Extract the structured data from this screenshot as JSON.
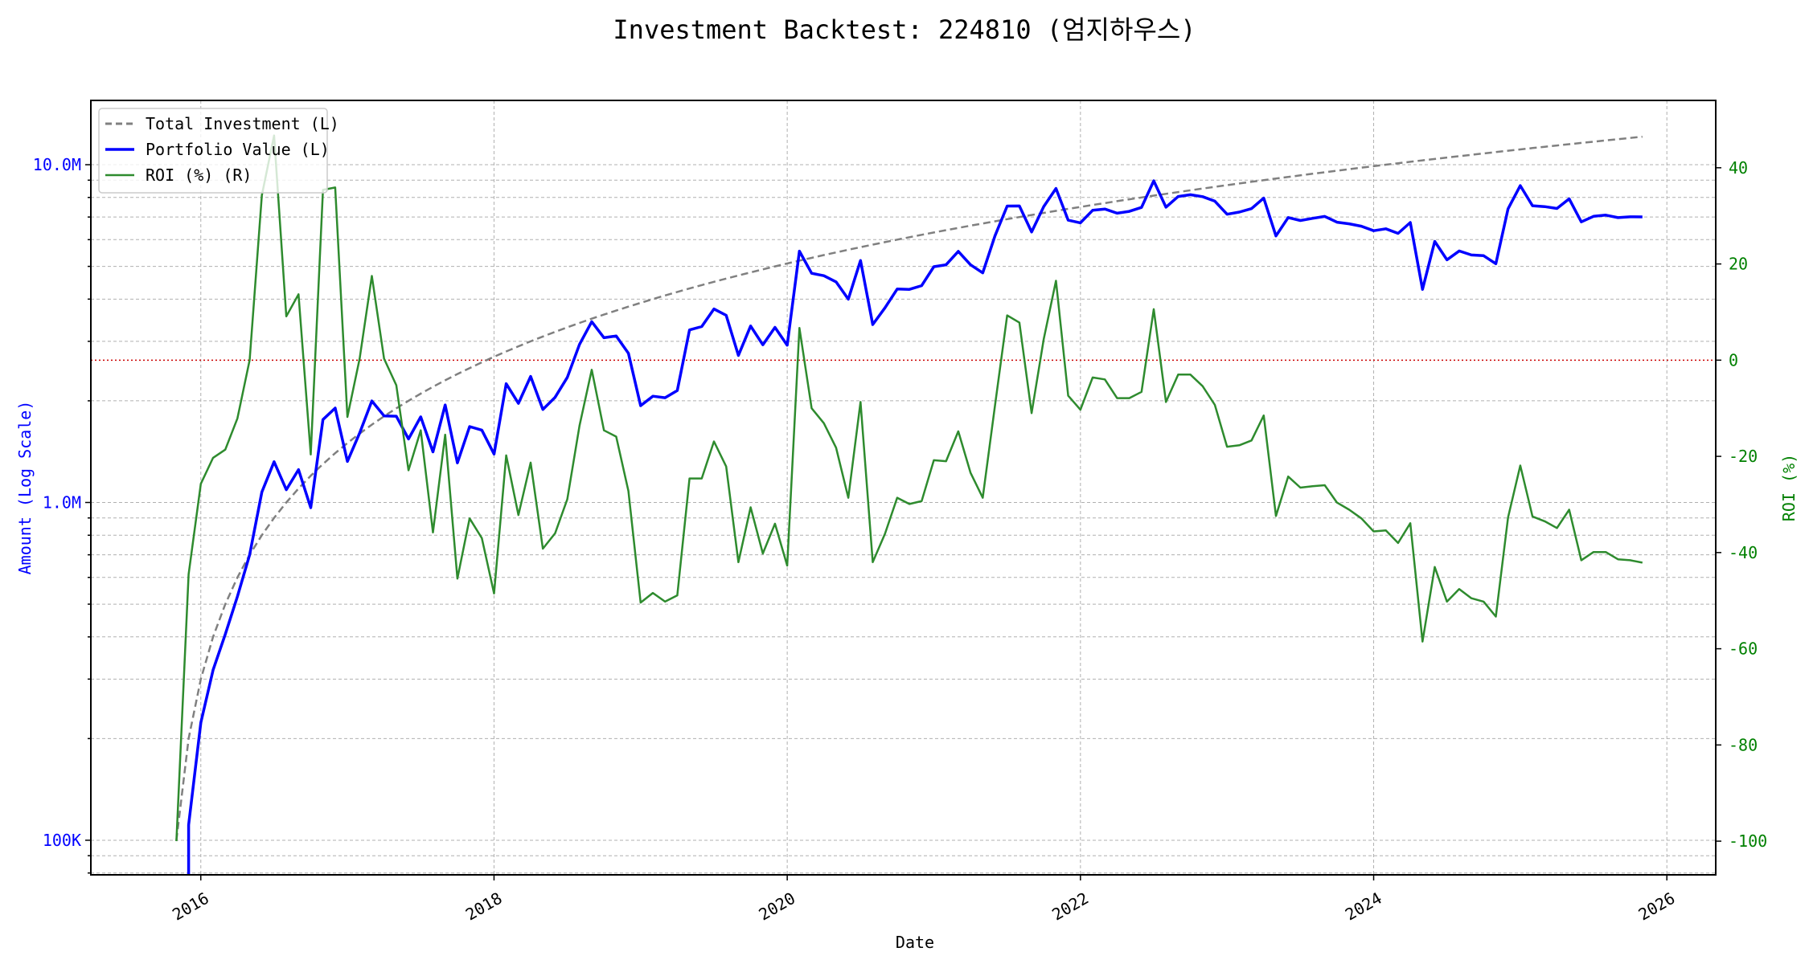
{
  "chart_data": {
    "type": "line",
    "title": "Investment Backtest: 224810 (엄지하우스)",
    "xlabel": "Date",
    "ylabel_left": "Amount (Log Scale)",
    "ylabel_right": "ROI (%)",
    "left_scale": "log",
    "ylim_left": [
      79000,
      15500000
    ],
    "ylim_right": [
      -107,
      54
    ],
    "xlim": [
      "2015-04",
      "2026-05"
    ],
    "x_ticks": [
      "2016",
      "2018",
      "2020",
      "2022",
      "2024",
      "2026"
    ],
    "left_ticks": [
      {
        "value": 100000,
        "label": "100K"
      },
      {
        "value": 1000000,
        "label": "1.0M"
      },
      {
        "value": 10000000,
        "label": "10.0M"
      }
    ],
    "right_ticks": [
      {
        "value": 40,
        "label": "40"
      },
      {
        "value": 20,
        "label": "20"
      },
      {
        "value": 0,
        "label": "0"
      },
      {
        "value": -20,
        "label": "-20"
      },
      {
        "value": -40,
        "label": "-40"
      },
      {
        "value": -60,
        "label": "-60"
      },
      {
        "value": -80,
        "label": "-80"
      },
      {
        "value": -100,
        "label": "-100"
      }
    ],
    "grid": true,
    "legend_position": "top-left",
    "reference_line": {
      "axis": "right",
      "value": 0,
      "color": "#cc0000",
      "style": "dotted"
    },
    "colors": {
      "investment": "#808080",
      "portfolio": "#0000ff",
      "roi": "#2e8b2e",
      "left_axis": "#0000ff",
      "right_axis": "#008000"
    },
    "x": [
      "2015-11",
      "2015-12",
      "2016-01",
      "2016-02",
      "2016-03",
      "2016-04",
      "2016-05",
      "2016-06",
      "2016-07",
      "2016-08",
      "2016-09",
      "2016-10",
      "2016-11",
      "2016-12",
      "2017-01",
      "2017-02",
      "2017-03",
      "2017-04",
      "2017-05",
      "2017-06",
      "2017-07",
      "2017-08",
      "2017-09",
      "2017-10",
      "2017-11",
      "2017-12",
      "2018-01",
      "2018-02",
      "2018-03",
      "2018-04",
      "2018-05",
      "2018-06",
      "2018-07",
      "2018-08",
      "2018-09",
      "2018-10",
      "2018-11",
      "2018-12",
      "2019-01",
      "2019-02",
      "2019-03",
      "2019-04",
      "2019-05",
      "2019-06",
      "2019-07",
      "2019-08",
      "2019-09",
      "2019-10",
      "2019-11",
      "2019-12",
      "2020-01",
      "2020-02",
      "2020-03",
      "2020-04",
      "2020-05",
      "2020-06",
      "2020-07",
      "2020-08",
      "2020-09",
      "2020-10",
      "2020-11",
      "2020-12",
      "2021-01",
      "2021-02",
      "2021-03",
      "2021-04",
      "2021-05",
      "2021-06",
      "2021-07",
      "2021-08",
      "2021-09",
      "2021-10",
      "2021-11",
      "2021-12",
      "2022-01",
      "2022-02",
      "2022-03",
      "2022-04",
      "2022-05",
      "2022-06",
      "2022-07",
      "2022-08",
      "2022-09",
      "2022-10",
      "2022-11",
      "2022-12",
      "2023-01",
      "2023-02",
      "2023-03",
      "2023-04",
      "2023-05",
      "2023-06",
      "2023-07",
      "2023-08",
      "2023-09",
      "2023-10",
      "2023-11",
      "2023-12",
      "2024-01",
      "2024-02",
      "2024-03",
      "2024-04",
      "2024-05",
      "2024-06",
      "2024-07",
      "2024-08",
      "2024-09",
      "2024-10",
      "2024-11",
      "2024-12",
      "2025-01",
      "2025-02",
      "2025-03",
      "2025-04",
      "2025-05",
      "2025-06",
      "2025-07",
      "2025-08",
      "2025-09",
      "2025-10",
      "2025-11"
    ],
    "series": [
      {
        "name": "Total Investment (L)",
        "axis": "left",
        "style": "dashed",
        "values": [
          100000,
          200000,
          300000,
          400000,
          500000,
          600000,
          700000,
          800000,
          900000,
          1000000,
          1100000,
          1200000,
          1300000,
          1400000,
          1500000,
          1600000,
          1700000,
          1800000,
          1900000,
          2000000,
          2100000,
          2200000,
          2300000,
          2400000,
          2500000,
          2600000,
          2700000,
          2800000,
          2900000,
          3000000,
          3100000,
          3200000,
          3300000,
          3400000,
          3500000,
          3600000,
          3700000,
          3800000,
          3900000,
          4000000,
          4100000,
          4200000,
          4300000,
          4400000,
          4500000,
          4600000,
          4700000,
          4800000,
          4900000,
          5000000,
          5100000,
          5200000,
          5300000,
          5400000,
          5500000,
          5600000,
          5700000,
          5800000,
          5900000,
          6000000,
          6100000,
          6200000,
          6300000,
          6400000,
          6500000,
          6600000,
          6700000,
          6800000,
          6900000,
          7000000,
          7100000,
          7200000,
          7300000,
          7400000,
          7500000,
          7600000,
          7700000,
          7800000,
          7900000,
          8000000,
          8100000,
          8200000,
          8300000,
          8400000,
          8500000,
          8600000,
          8700000,
          8800000,
          8900000,
          9000000,
          9100000,
          9200000,
          9300000,
          9400000,
          9500000,
          9600000,
          9700000,
          9800000,
          9900000,
          10000000,
          10100000,
          10200000,
          10300000,
          10400000,
          10500000,
          10600000,
          10700000,
          10800000,
          10900000,
          11000000,
          11100000,
          11200000,
          11300000,
          11400000,
          11500000,
          11600000,
          11700000,
          11800000,
          11900000,
          12000000,
          12100000
        ]
      },
      {
        "name": "Portfolio Value (L)",
        "axis": "left",
        "style": "solid",
        "values": [
          0,
          111000,
          223000,
          319000,
          407000,
          527000,
          700000,
          1074000,
          1320000,
          1091000,
          1251000,
          965000,
          1760000,
          1903000,
          1323000,
          1605000,
          1998000,
          1805000,
          1801000,
          1542000,
          1793000,
          1412000,
          1944000,
          1310000,
          1678000,
          1638000,
          1391000,
          2246000,
          1966000,
          2361000,
          1885000,
          2048000,
          2346000,
          2938000,
          3430000,
          3074000,
          3112000,
          2766000,
          1934000,
          2064000,
          2042000,
          2146000,
          3242000,
          3318000,
          3740000,
          3583000,
          2726000,
          3331000,
          2930000,
          3300000,
          2922000,
          5548000,
          4770000,
          4693000,
          4499000,
          3998000,
          5204000,
          3364000,
          3770000,
          4284000,
          4276000,
          4383000,
          4990000,
          5056000,
          5538000,
          5056000,
          4784000,
          6154000,
          7542000,
          7546000,
          6319000,
          7517000,
          8505000,
          6852000,
          6728000,
          7326000,
          7392000,
          7184000,
          7276000,
          7472000,
          8959000,
          7487000,
          8051000,
          8148000,
          8041000,
          7800000,
          7134000,
          7242000,
          7414000,
          7965000,
          6152000,
          6974000,
          6836000,
          6937000,
          7030000,
          6758000,
          6683000,
          6576000,
          6376000,
          6460000,
          6262000,
          6742000,
          4275000,
          5928000,
          5229000,
          5554000,
          5404000,
          5378000,
          5090000,
          7403000,
          8669000,
          7560000,
          7515000,
          7421000,
          7924000,
          6774000,
          7032000,
          7092000,
          6973000,
          7008000,
          7006000
        ]
      },
      {
        "name": "ROI (%) (R)",
        "axis": "right",
        "style": "solid",
        "values": [
          -100,
          -44.5,
          -25.7,
          -20.3,
          -18.6,
          -12.1,
          0,
          34.3,
          46.7,
          9.1,
          13.7,
          -19.6,
          35.4,
          35.9,
          -11.8,
          0.3,
          17.5,
          0.3,
          -5.2,
          -22.9,
          -14.6,
          -35.8,
          -15.5,
          -45.4,
          -32.9,
          -37.0,
          -48.5,
          -19.8,
          -32.2,
          -21.3,
          -39.2,
          -36.0,
          -28.9,
          -13.6,
          -2.0,
          -14.6,
          -15.9,
          -27.2,
          -50.4,
          -48.4,
          -50.2,
          -48.9,
          -24.6,
          -24.6,
          -16.9,
          -22.1,
          -42.0,
          -30.6,
          -40.2,
          -34.0,
          -42.7,
          6.7,
          -10.0,
          -13.1,
          -18.2,
          -28.6,
          -8.7,
          -42.0,
          -36.1,
          -28.6,
          -29.9,
          -29.3,
          -20.8,
          -21.0,
          -14.8,
          -23.4,
          -28.6,
          -9.5,
          9.3,
          7.8,
          -11.0,
          4.4,
          16.5,
          -7.4,
          -10.3,
          -3.6,
          -4.0,
          -7.9,
          -7.9,
          -6.6,
          10.6,
          -8.7,
          -3.0,
          -3.0,
          -5.4,
          -9.3,
          -18.0,
          -17.7,
          -16.7,
          -11.5,
          -32.4,
          -24.2,
          -26.5,
          -26.2,
          -26.0,
          -29.6,
          -31.1,
          -32.9,
          -35.6,
          -35.4,
          -38.0,
          -33.9,
          -58.5,
          -43.0,
          -50.2,
          -47.6,
          -49.5,
          -50.2,
          -53.3,
          -32.7,
          -21.9,
          -32.5,
          -33.5,
          -34.9,
          -31.1,
          -41.6,
          -39.9,
          -39.9,
          -41.4,
          -41.6,
          -42.1
        ]
      }
    ]
  }
}
